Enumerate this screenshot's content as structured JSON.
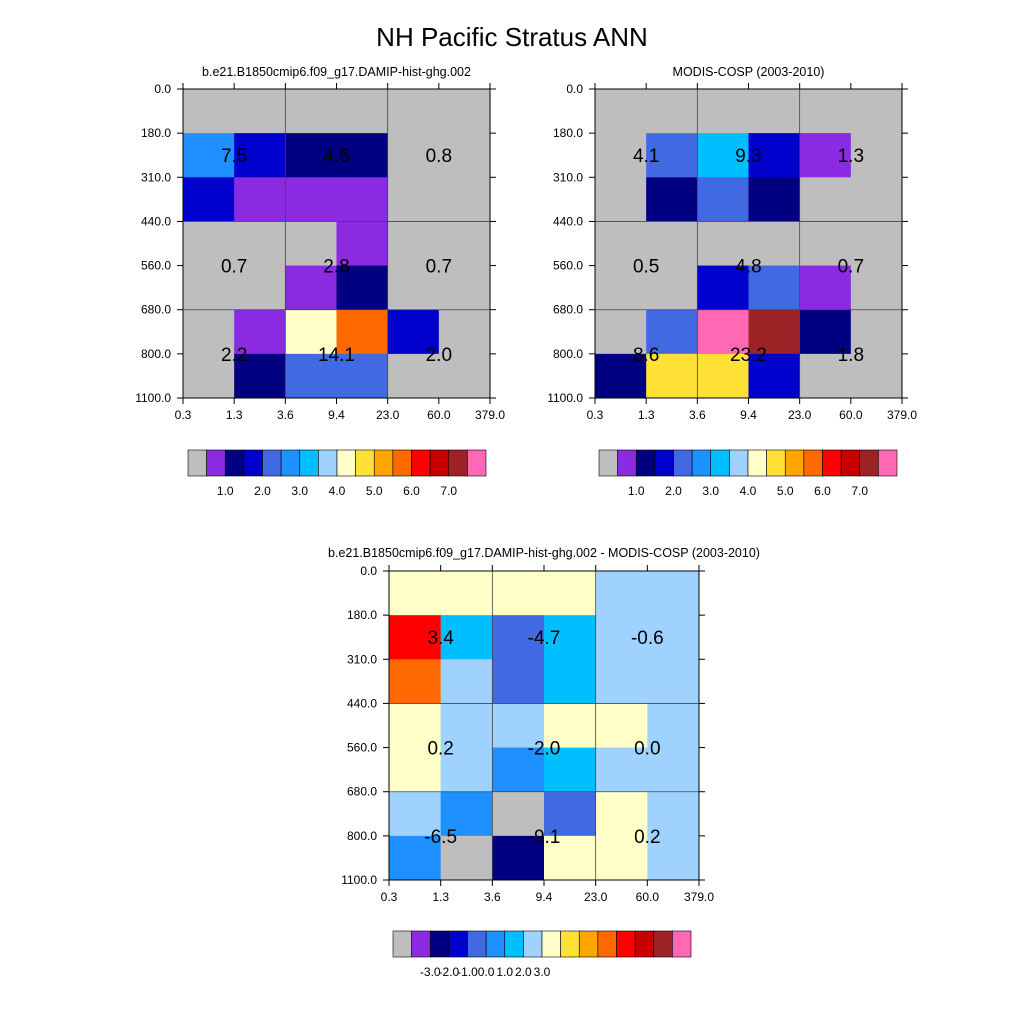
{
  "title": "NH Pacific Stratus ANN",
  "palette": {
    "gray": "#bebebe",
    "violet": "#8a2be2",
    "navy": "#000080",
    "blue": "#0000cd",
    "royal": "#4169e1",
    "dodger": "#1e90ff",
    "sky": "#00bfff",
    "lightsky": "#a0d2ff",
    "cream": "#ffffc8",
    "gold": "#ffe135",
    "orange": "#ffa500",
    "dkorange": "#ff6a00",
    "red": "#ff0000",
    "crimson": "#c80000",
    "brown": "#9c2226",
    "pink": "#ff69b4"
  },
  "chart_data": [
    {
      "type": "heatmap",
      "title": "b.e21.B1850cmip6.f09_g17.DAMIP-hist-ghg.002",
      "x_ticks": [
        "0.3",
        "1.3",
        "3.6",
        "9.4",
        "23.0",
        "60.0",
        "379.0"
      ],
      "y_ticks": [
        "0.0",
        "180.0",
        "310.0",
        "440.0",
        "560.0",
        "680.0",
        "800.0",
        "1100.0"
      ],
      "cells": [
        [
          "gray",
          "gray",
          "gray",
          "gray",
          "gray",
          "gray"
        ],
        [
          "dodger",
          "blue",
          "navy",
          "navy",
          "gray",
          "gray"
        ],
        [
          "blue",
          "violet",
          "violet",
          "violet",
          "gray",
          "gray"
        ],
        [
          "gray",
          "gray",
          "gray",
          "violet",
          "gray",
          "gray"
        ],
        [
          "gray",
          "gray",
          "violet",
          "navy",
          "gray",
          "gray"
        ],
        [
          "gray",
          "violet",
          "cream",
          "dkorange",
          "blue",
          "gray"
        ],
        [
          "gray",
          "navy",
          "royal",
          "royal",
          "gray",
          "gray"
        ]
      ],
      "values": [
        {
          "label": "7.5",
          "col": 1,
          "row": 1.5
        },
        {
          "label": "4.6",
          "col": 3,
          "row": 1.5
        },
        {
          "label": "0.8",
          "col": 5,
          "row": 1.5
        },
        {
          "label": "0.7",
          "col": 1,
          "row": 4
        },
        {
          "label": "2.8",
          "col": 3,
          "row": 4
        },
        {
          "label": "0.7",
          "col": 5,
          "row": 4
        },
        {
          "label": "2.2",
          "col": 1,
          "row": 6
        },
        {
          "label": "14.1",
          "col": 3,
          "row": 6
        },
        {
          "label": "2.0",
          "col": 5,
          "row": 6
        }
      ],
      "colorbar": {
        "colors": [
          "gray",
          "violet",
          "navy",
          "blue",
          "royal",
          "dodger",
          "sky",
          "lightsky",
          "cream",
          "gold",
          "orange",
          "dkorange",
          "red",
          "crimson",
          "brown",
          "pink"
        ],
        "labels": [
          {
            "text": "1.0",
            "boundary": 2
          },
          {
            "text": "2.0",
            "boundary": 4
          },
          {
            "text": "3.0",
            "boundary": 6
          },
          {
            "text": "4.0",
            "boundary": 8
          },
          {
            "text": "5.0",
            "boundary": 10
          },
          {
            "text": "6.0",
            "boundary": 12
          },
          {
            "text": "7.0",
            "boundary": 14
          }
        ]
      }
    },
    {
      "type": "heatmap",
      "title": "MODIS-COSP (2003-2010)",
      "x_ticks": [
        "0.3",
        "1.3",
        "3.6",
        "9.4",
        "23.0",
        "60.0",
        "379.0"
      ],
      "y_ticks": [
        "0.0",
        "180.0",
        "310.0",
        "440.0",
        "560.0",
        "680.0",
        "800.0",
        "1100.0"
      ],
      "cells": [
        [
          "gray",
          "gray",
          "gray",
          "gray",
          "gray",
          "gray"
        ],
        [
          "gray",
          "royal",
          "sky",
          "blue",
          "violet",
          "gray"
        ],
        [
          "gray",
          "navy",
          "royal",
          "navy",
          "gray",
          "gray"
        ],
        [
          "gray",
          "gray",
          "gray",
          "gray",
          "gray",
          "gray"
        ],
        [
          "gray",
          "gray",
          "blue",
          "royal",
          "violet",
          "gray"
        ],
        [
          "gray",
          "royal",
          "pink",
          "brown",
          "navy",
          "gray"
        ],
        [
          "navy",
          "gold",
          "gold",
          "blue",
          "gray",
          "gray"
        ]
      ],
      "values": [
        {
          "label": "4.1",
          "col": 1,
          "row": 1.5
        },
        {
          "label": "9.3",
          "col": 3,
          "row": 1.5
        },
        {
          "label": "1.3",
          "col": 5,
          "row": 1.5
        },
        {
          "label": "0.5",
          "col": 1,
          "row": 4
        },
        {
          "label": "4.8",
          "col": 3,
          "row": 4
        },
        {
          "label": "0.7",
          "col": 5,
          "row": 4
        },
        {
          "label": "8.6",
          "col": 1,
          "row": 6
        },
        {
          "label": "23.2",
          "col": 3,
          "row": 6
        },
        {
          "label": "1.8",
          "col": 5,
          "row": 6
        }
      ],
      "colorbar": {
        "colors": [
          "gray",
          "violet",
          "navy",
          "blue",
          "royal",
          "dodger",
          "sky",
          "lightsky",
          "cream",
          "gold",
          "orange",
          "dkorange",
          "red",
          "crimson",
          "brown",
          "pink"
        ],
        "labels": [
          {
            "text": "1.0",
            "boundary": 2
          },
          {
            "text": "2.0",
            "boundary": 4
          },
          {
            "text": "3.0",
            "boundary": 6
          },
          {
            "text": "4.0",
            "boundary": 8
          },
          {
            "text": "5.0",
            "boundary": 10
          },
          {
            "text": "6.0",
            "boundary": 12
          },
          {
            "text": "7.0",
            "boundary": 14
          }
        ]
      }
    },
    {
      "type": "heatmap",
      "title": "b.e21.B1850cmip6.f09_g17.DAMIP-hist-ghg.002 - MODIS-COSP (2003-2010)",
      "x_ticks": [
        "0.3",
        "1.3",
        "3.6",
        "9.4",
        "23.0",
        "60.0",
        "379.0"
      ],
      "y_ticks": [
        "0.0",
        "180.0",
        "310.0",
        "440.0",
        "560.0",
        "680.0",
        "800.0",
        "1100.0"
      ],
      "cells": [
        [
          "cream",
          "cream",
          "cream",
          "cream",
          "lightsky",
          "lightsky"
        ],
        [
          "red",
          "sky",
          "royal",
          "sky",
          "lightsky",
          "lightsky"
        ],
        [
          "dkorange",
          "lightsky",
          "royal",
          "sky",
          "lightsky",
          "lightsky"
        ],
        [
          "cream",
          "lightsky",
          "lightsky",
          "cream",
          "cream",
          "lightsky"
        ],
        [
          "cream",
          "lightsky",
          "dodger",
          "sky",
          "lightsky",
          "lightsky"
        ],
        [
          "lightsky",
          "dodger",
          "gray",
          "royal",
          "cream",
          "lightsky"
        ],
        [
          "dodger",
          "gray",
          "navy",
          "cream",
          "cream",
          "lightsky"
        ]
      ],
      "values": [
        {
          "label": "3.4",
          "col": 1,
          "row": 1.5
        },
        {
          "label": "-4.7",
          "col": 3,
          "row": 1.5
        },
        {
          "label": "-0.6",
          "col": 5,
          "row": 1.5
        },
        {
          "label": "0.2",
          "col": 1,
          "row": 4
        },
        {
          "label": "-2.0",
          "col": 3,
          "row": 4
        },
        {
          "label": "0.0",
          "col": 5,
          "row": 4
        },
        {
          "label": "-6.5",
          "col": 1,
          "row": 6
        },
        {
          "label": "-9.1",
          "col": 3,
          "row": 6
        },
        {
          "label": "0.2",
          "col": 5,
          "row": 6
        }
      ],
      "colorbar": {
        "colors": [
          "gray",
          "violet",
          "navy",
          "blue",
          "royal",
          "dodger",
          "sky",
          "lightsky",
          "cream",
          "gold",
          "orange",
          "dkorange",
          "red",
          "crimson",
          "brown",
          "pink"
        ],
        "labels": [
          {
            "text": "-3.0",
            "boundary": 2
          },
          {
            "text": "-2.0",
            "boundary": 3
          },
          {
            "text": "-1.0",
            "boundary": 4
          },
          {
            "text": "0.0",
            "boundary": 5
          },
          {
            "text": "1.0",
            "boundary": 6
          },
          {
            "text": "2.0",
            "boundary": 7
          },
          {
            "text": "3.0",
            "boundary": 8
          }
        ]
      }
    }
  ]
}
